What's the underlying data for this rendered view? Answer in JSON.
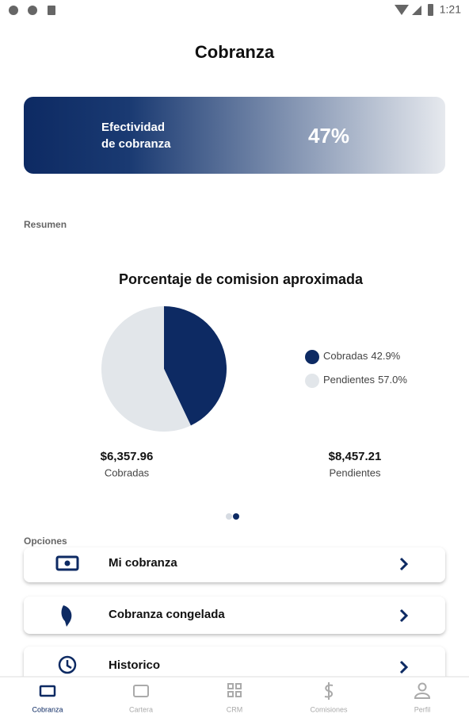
{
  "status_bar": {
    "time": "1:21"
  },
  "header": {
    "title": "Cobranza"
  },
  "banner": {
    "label_line1": "Efectividad",
    "label_line2": "de cobranza",
    "value": "47%"
  },
  "summary_label": "Resumen",
  "chart_data": {
    "type": "pie",
    "title": "Porcentaje de comision aproximada",
    "categories": [
      "Cobradas",
      "Pendientes"
    ],
    "values": [
      42.9,
      57.0
    ],
    "value_labels": [
      "42.9%",
      "57.0%"
    ],
    "colors": [
      "#0d2a63",
      "#e2e6ea"
    ]
  },
  "amounts": [
    {
      "value": "$6,357.96",
      "label": "Cobradas"
    },
    {
      "value": "$8,457.21",
      "label": "Pendientes"
    }
  ],
  "options_label": "Opciones",
  "options": [
    "Mi cobranza",
    "Cobranza congelada",
    "Historico"
  ],
  "nav": [
    "Cobranza",
    "Cartera",
    "CRM",
    "Comisiones",
    "Perfil"
  ]
}
